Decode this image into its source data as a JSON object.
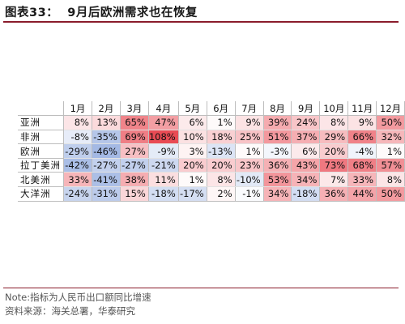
{
  "header": {
    "title": "图表33：  9月后欧洲需求也在恢复"
  },
  "table": {
    "columns": [
      "1月",
      "2月",
      "3月",
      "4月",
      "5月",
      "6月",
      "7月",
      "8月",
      "9月",
      "10月",
      "11月",
      "12月"
    ],
    "rows": [
      {
        "label": "亚洲",
        "cells": [
          "8%",
          "13%",
          "65%",
          "47%",
          "6%",
          "1%",
          "9%",
          "39%",
          "24%",
          "8%",
          "9%",
          "50%"
        ],
        "values": [
          8,
          13,
          65,
          47,
          6,
          1,
          9,
          39,
          24,
          8,
          9,
          50
        ]
      },
      {
        "label": "非洲",
        "cells": [
          "-8%",
          "-35%",
          "69%",
          "108%",
          "10%",
          "18%",
          "25%",
          "51%",
          "37%",
          "29%",
          "66%",
          "32%"
        ],
        "values": [
          -8,
          -35,
          69,
          108,
          10,
          18,
          25,
          51,
          37,
          29,
          66,
          32
        ]
      },
      {
        "label": "欧洲",
        "cells": [
          "-29%",
          "-46%",
          "27%",
          "-9%",
          "3%",
          "-13%",
          "1%",
          "-3%",
          "6%",
          "20%",
          "-4%",
          "1%"
        ],
        "values": [
          -29,
          -46,
          27,
          -9,
          3,
          -13,
          1,
          -3,
          6,
          20,
          -4,
          1
        ]
      },
      {
        "label": "拉丁美洲",
        "cells": [
          "-42%",
          "-27%",
          "-27%",
          "-21%",
          "20%",
          "20%",
          "23%",
          "36%",
          "43%",
          "73%",
          "68%",
          "57%"
        ],
        "values": [
          -42,
          -27,
          -27,
          -21,
          20,
          20,
          23,
          36,
          43,
          73,
          68,
          57
        ]
      },
      {
        "label": "北美洲",
        "cells": [
          "33%",
          "-41%",
          "38%",
          "11%",
          "1%",
          "8%",
          "-10%",
          "53%",
          "34%",
          "7%",
          "33%",
          "8%"
        ],
        "values": [
          33,
          -41,
          38,
          11,
          1,
          8,
          -10,
          53,
          34,
          7,
          33,
          8
        ]
      },
      {
        "label": "大洋洲",
        "cells": [
          "-24%",
          "-31%",
          "15%",
          "-18%",
          "-17%",
          "2%",
          "-1%",
          "34%",
          "-18%",
          "36%",
          "44%",
          "50%"
        ],
        "values": [
          -24,
          -31,
          15,
          -18,
          -17,
          2,
          -1,
          34,
          -18,
          36,
          44,
          50
        ]
      }
    ],
    "colors": {
      "positive": "#e8414b",
      "negative": "#4a74c9",
      "neutral": "#ffffff"
    }
  },
  "notes": {
    "note": "Note:指标为人民币出口额同比增速",
    "source": "资料来源：海关总署，华泰研究"
  }
}
